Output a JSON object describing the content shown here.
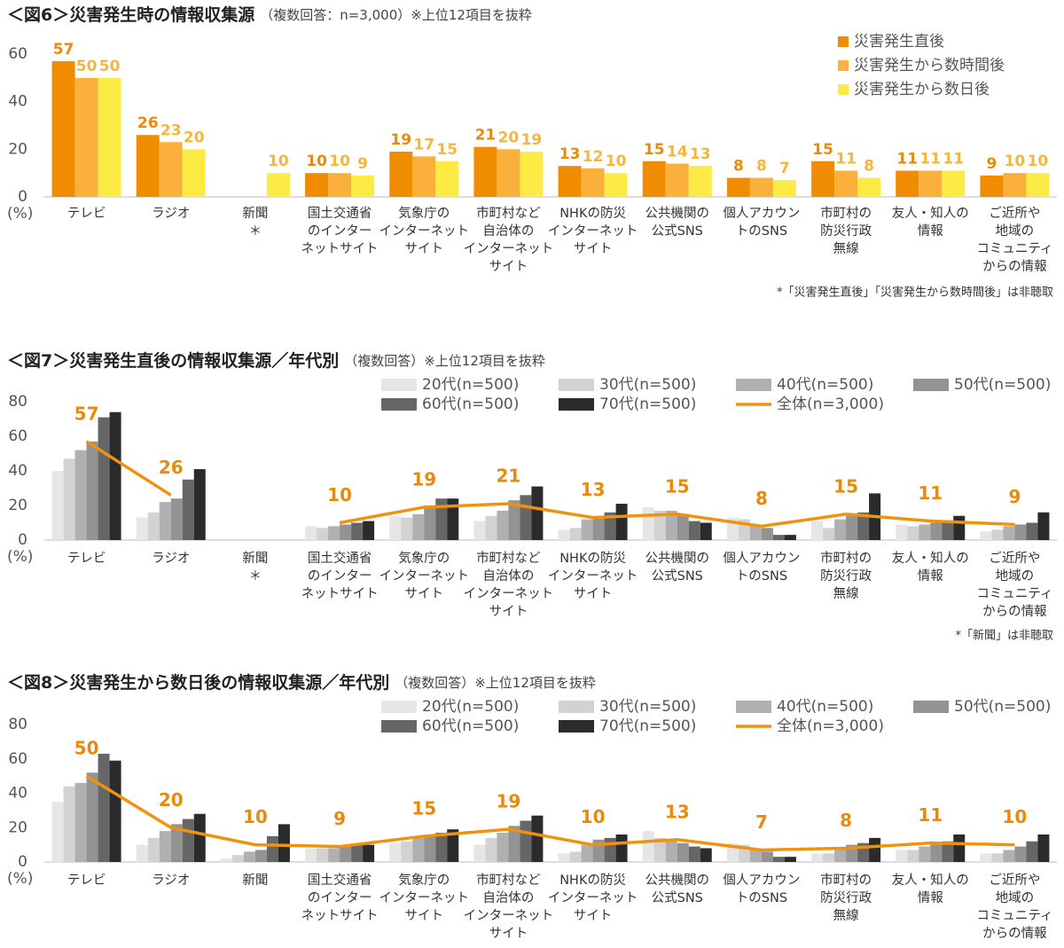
{
  "chart_data": [
    {
      "type": "bar",
      "title": "＜図6＞災害発生時の情報収集源",
      "subtitle": "（複数回答：n=3,000）※上位12項目を抜粋",
      "y_label": "(%)",
      "categories": [
        [
          "テレビ"
        ],
        [
          "ラジオ"
        ],
        [
          "新聞",
          "＊"
        ],
        [
          "国土交通省",
          "のインター",
          "ネットサイト"
        ],
        [
          "気象庁の",
          "インターネット",
          "サイト"
        ],
        [
          "市町村など",
          "自治体の",
          "インターネット",
          "サイト"
        ],
        [
          "NHKの防災",
          "インターネット",
          "サイト"
        ],
        [
          "公共機関の",
          "公式SNS"
        ],
        [
          "個人アカウン",
          "トのSNS"
        ],
        [
          "市町村の",
          "防災行政",
          "無線"
        ],
        [
          "友人・知人の",
          "情報"
        ],
        [
          "ご近所や",
          "地域の",
          "コミュニティ",
          "からの情報"
        ]
      ],
      "series": [
        {
          "name": "災害発生直後",
          "color": "#f08c00",
          "labels": true,
          "values": [
            57,
            26,
            null,
            10,
            19,
            21,
            13,
            15,
            8,
            15,
            11,
            9
          ]
        },
        {
          "name": "災害発生から数時間後",
          "color": "#fbb03b",
          "labels": true,
          "values": [
            50,
            23,
            null,
            10,
            17,
            20,
            12,
            14,
            8,
            11,
            11,
            10
          ]
        },
        {
          "name": "災害発生から数日後",
          "color": "#fcea45",
          "labels": true,
          "values": [
            50,
            20,
            10,
            9,
            15,
            19,
            10,
            13,
            7,
            8,
            11,
            10
          ]
        }
      ],
      "ylim": [
        0,
        60
      ],
      "yticks": [
        0,
        20,
        40,
        60
      ],
      "grid": false,
      "legend": "top-right",
      "footnote": "*「災害発生直後」「災害発生から数時間後」は非聴取"
    },
    {
      "type": "bar",
      "title": "＜図7＞災害発生直後の情報収集源／年代別",
      "subtitle": "（複数回答）※上位12項目を抜粋",
      "y_label": "(%)",
      "categories": [
        [
          "テレビ"
        ],
        [
          "ラジオ"
        ],
        [
          "新聞",
          "＊"
        ],
        [
          "国土交通省",
          "のインター",
          "ネットサイト"
        ],
        [
          "気象庁の",
          "インターネット",
          "サイト"
        ],
        [
          "市町村など",
          "自治体の",
          "インターネット",
          "サイト"
        ],
        [
          "NHKの防災",
          "インターネット",
          "サイト"
        ],
        [
          "公共機関の",
          "公式SNS"
        ],
        [
          "個人アカウン",
          "トのSNS"
        ],
        [
          "市町村の",
          "防災行政",
          "無線"
        ],
        [
          "友人・知人の",
          "情報"
        ],
        [
          "ご近所や",
          "地域の",
          "コミュニティ",
          "からの情報"
        ]
      ],
      "series": [
        {
          "name": "20代(n=500)",
          "color": "#e6e6e6",
          "values": [
            40,
            13,
            null,
            8,
            14,
            11,
            6,
            19,
            13,
            11,
            9,
            5
          ]
        },
        {
          "name": "30代(n=500)",
          "color": "#d2d2d2",
          "values": [
            47,
            16,
            null,
            7,
            13,
            14,
            7,
            17,
            12,
            7,
            8,
            6
          ]
        },
        {
          "name": "40代(n=500)",
          "color": "#b0b0b0",
          "values": [
            52,
            22,
            null,
            8,
            15,
            17,
            12,
            17,
            9,
            12,
            9,
            8
          ]
        },
        {
          "name": "50代(n=500)",
          "color": "#939393",
          "values": [
            57,
            24,
            null,
            9,
            20,
            23,
            13,
            15,
            7,
            14,
            10,
            9
          ]
        },
        {
          "name": "60代(n=500)",
          "color": "#666666",
          "values": [
            71,
            35,
            null,
            10,
            24,
            26,
            16,
            11,
            3,
            16,
            10,
            10
          ]
        },
        {
          "name": "70代(n=500)",
          "color": "#2b2b2b",
          "values": [
            74,
            41,
            null,
            11,
            24,
            31,
            21,
            10,
            3,
            27,
            14,
            16
          ]
        },
        {
          "name": "全体(n=3,000)",
          "color": "#ef930f",
          "type": "line",
          "labels": true,
          "values": [
            57,
            26,
            null,
            10,
            19,
            21,
            13,
            15,
            8,
            15,
            11,
            9
          ]
        }
      ],
      "ylim": [
        0,
        80
      ],
      "yticks": [
        0,
        20,
        40,
        60,
        80
      ],
      "grid": false,
      "legend": "top",
      "footnote": "*「新聞」は非聴取"
    },
    {
      "type": "bar",
      "title": "＜図8＞災害発生から数日後の情報収集源／年代別",
      "subtitle": "（複数回答）※上位12項目を抜粋",
      "y_label": "(%)",
      "categories": [
        [
          "テレビ"
        ],
        [
          "ラジオ"
        ],
        [
          "新聞"
        ],
        [
          "国土交通省",
          "のインター",
          "ネットサイト"
        ],
        [
          "気象庁の",
          "インターネット",
          "サイト"
        ],
        [
          "市町村など",
          "自治体の",
          "インターネット",
          "サイト"
        ],
        [
          "NHKの防災",
          "インターネット",
          "サイト"
        ],
        [
          "公共機関の",
          "公式SNS"
        ],
        [
          "個人アカウン",
          "トのSNS"
        ],
        [
          "市町村の",
          "防災行政",
          "無線"
        ],
        [
          "友人・知人の",
          "情報"
        ],
        [
          "ご近所や",
          "地域の",
          "コミュニティ",
          "からの情報"
        ]
      ],
      "series": [
        {
          "name": "20代(n=500)",
          "color": "#e6e6e6",
          "values": [
            35,
            10,
            2,
            8,
            11,
            10,
            5,
            18,
            11,
            5,
            7,
            5
          ]
        },
        {
          "name": "30代(n=500)",
          "color": "#d2d2d2",
          "values": [
            44,
            14,
            4,
            8,
            12,
            14,
            6,
            14,
            10,
            5,
            7,
            5
          ]
        },
        {
          "name": "40代(n=500)",
          "color": "#b0b0b0",
          "values": [
            46,
            18,
            6,
            8,
            14,
            17,
            10,
            13,
            7,
            8,
            9,
            7
          ]
        },
        {
          "name": "50代(n=500)",
          "color": "#939393",
          "values": [
            52,
            22,
            7,
            9,
            15,
            21,
            13,
            11,
            6,
            10,
            10,
            9
          ]
        },
        {
          "name": "60代(n=500)",
          "color": "#666666",
          "values": [
            63,
            25,
            15,
            10,
            17,
            24,
            14,
            9,
            3,
            11,
            12,
            12
          ]
        },
        {
          "name": "70代(n=500)",
          "color": "#2b2b2b",
          "values": [
            59,
            28,
            22,
            10,
            19,
            27,
            16,
            8,
            3,
            14,
            16,
            16
          ]
        },
        {
          "name": "全体(n=3,000)",
          "color": "#ef930f",
          "type": "line",
          "labels": true,
          "values": [
            50,
            20,
            10,
            9,
            15,
            19,
            10,
            13,
            7,
            8,
            11,
            10
          ]
        }
      ],
      "ylim": [
        0,
        80
      ],
      "yticks": [
        0,
        20,
        40,
        60,
        80
      ],
      "grid": false,
      "legend": "top"
    }
  ]
}
